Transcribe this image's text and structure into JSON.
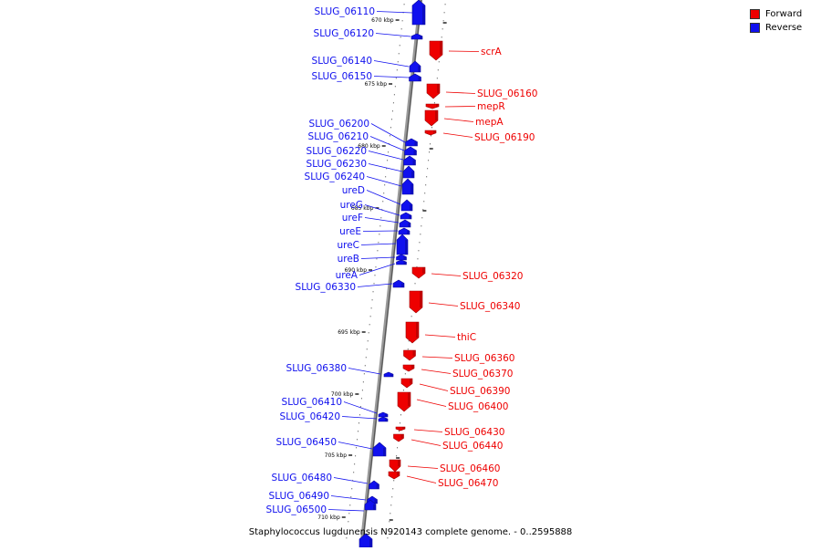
{
  "legend": {
    "forward_label": "Forward",
    "reverse_label": "Reverse",
    "forward_color": "#ee0000",
    "reverse_color": "#1010ee"
  },
  "caption": "Staphylococcus lugdunensis N920143 complete genome. - 0..2595888",
  "ticks": [
    "670 kbp",
    "675 kbp",
    "680 kbp",
    "685 kbp",
    "690 kbp",
    "695 kbp",
    "700 kbp",
    "705 kbp",
    "710 kbp"
  ],
  "reverse_labels": [
    "SLUG_06110",
    "SLUG_06120",
    "SLUG_06140",
    "SLUG_06150",
    "SLUG_06200",
    "SLUG_06210",
    "SLUG_06220",
    "SLUG_06230",
    "SLUG_06240",
    "ureD",
    "ureG",
    "ureF",
    "ureE",
    "ureC",
    "ureB",
    "ureA",
    "SLUG_06330",
    "SLUG_06380",
    "SLUG_06410",
    "SLUG_06420",
    "SLUG_06450",
    "SLUG_06480",
    "SLUG_06490",
    "SLUG_06500"
  ],
  "forward_labels": [
    "scrA",
    "SLUG_06160",
    "mepR",
    "mepA",
    "SLUG_06190",
    "SLUG_06320",
    "SLUG_06340",
    "thiC",
    "SLUG_06360",
    "SLUG_06370",
    "SLUG_06390",
    "SLUG_06400",
    "SLUG_06430",
    "SLUG_06440",
    "SLUG_06460",
    "SLUG_06470"
  ]
}
